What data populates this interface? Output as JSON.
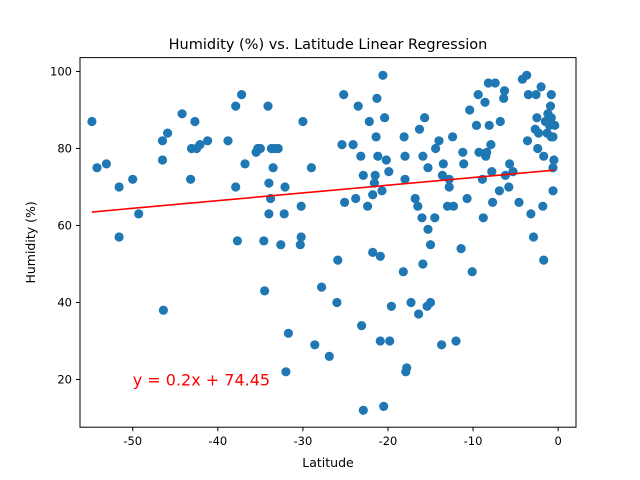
{
  "chart_data": {
    "type": "scatter",
    "title": "Humidity (%) vs. Latitude Linear Regression",
    "xlabel": "Latitude",
    "ylabel": "Humidity (%)",
    "xlim": [
      -56.2,
      2.1
    ],
    "ylim": [
      7.6,
      103.6
    ],
    "xticks": [
      -50,
      -40,
      -30,
      -20,
      -10,
      0
    ],
    "yticks": [
      20,
      40,
      60,
      80,
      100
    ],
    "grid": false,
    "point_color": "#1f77b4",
    "line_color": "#ff0000",
    "regression": {
      "slope": 0.2,
      "intercept": 74.45,
      "x_range": [
        -54.8,
        -0.5
      ],
      "equation": "y = 0.2x + 74.45",
      "label_position": [
        -50,
        20
      ]
    },
    "points": [
      [
        -54.8,
        87
      ],
      [
        -54.2,
        75
      ],
      [
        -53.1,
        76
      ],
      [
        -51.6,
        70
      ],
      [
        -51.6,
        57
      ],
      [
        -50,
        72
      ],
      [
        -49.3,
        63
      ],
      [
        -46.5,
        82
      ],
      [
        -46.5,
        77
      ],
      [
        -46.4,
        38
      ],
      [
        -45.9,
        84
      ],
      [
        -44.2,
        89
      ],
      [
        -43.2,
        72
      ],
      [
        -43.1,
        80
      ],
      [
        -42.7,
        87
      ],
      [
        -42.5,
        80
      ],
      [
        -42.1,
        81
      ],
      [
        -41.2,
        82
      ],
      [
        -38.8,
        82
      ],
      [
        -37.9,
        91
      ],
      [
        -37.9,
        70
      ],
      [
        -37.7,
        56
      ],
      [
        -37.2,
        94
      ],
      [
        -36.8,
        76
      ],
      [
        -35.5,
        79
      ],
      [
        -35.3,
        80
      ],
      [
        -35,
        80
      ],
      [
        -34.6,
        56
      ],
      [
        -34.5,
        43
      ],
      [
        -34.1,
        91
      ],
      [
        -34,
        63
      ],
      [
        -34,
        71
      ],
      [
        -33.8,
        67
      ],
      [
        -33.7,
        80
      ],
      [
        -33.5,
        75
      ],
      [
        -33.3,
        80
      ],
      [
        -32.9,
        80
      ],
      [
        -32.6,
        55
      ],
      [
        -32.2,
        63
      ],
      [
        -32.1,
        70
      ],
      [
        -32,
        22
      ],
      [
        -31.7,
        32
      ],
      [
        -30.3,
        55
      ],
      [
        -30.2,
        57
      ],
      [
        -30.2,
        65
      ],
      [
        -30,
        87
      ],
      [
        -29,
        75
      ],
      [
        -28.6,
        29
      ],
      [
        -27.8,
        44
      ],
      [
        -26.9,
        26
      ],
      [
        -26,
        40
      ],
      [
        -25.9,
        51
      ],
      [
        -25.4,
        81
      ],
      [
        -25.2,
        94
      ],
      [
        -25.1,
        66
      ],
      [
        -24.1,
        81
      ],
      [
        -23.8,
        67
      ],
      [
        -23.5,
        91
      ],
      [
        -23.2,
        78
      ],
      [
        -23.1,
        34
      ],
      [
        -22.9,
        12
      ],
      [
        -22.9,
        73
      ],
      [
        -22.4,
        65
      ],
      [
        -22.2,
        87
      ],
      [
        -21.8,
        53
      ],
      [
        -21.8,
        68
      ],
      [
        -21.6,
        71
      ],
      [
        -21.5,
        73
      ],
      [
        -21.4,
        83
      ],
      [
        -21.3,
        93
      ],
      [
        -21.2,
        78
      ],
      [
        -20.9,
        30
      ],
      [
        -20.9,
        52
      ],
      [
        -20.7,
        69
      ],
      [
        -20.6,
        99
      ],
      [
        -20.5,
        13
      ],
      [
        -20.4,
        88
      ],
      [
        -20.2,
        77
      ],
      [
        -19.9,
        74
      ],
      [
        -19.8,
        30
      ],
      [
        -19.6,
        39
      ],
      [
        -18.2,
        48
      ],
      [
        -18.1,
        83
      ],
      [
        -18,
        78
      ],
      [
        -18,
        72
      ],
      [
        -17.9,
        22
      ],
      [
        -17.8,
        23
      ],
      [
        -17.3,
        40
      ],
      [
        -16.8,
        67
      ],
      [
        -16.5,
        65
      ],
      [
        -16.4,
        37
      ],
      [
        -16.3,
        85
      ],
      [
        -16,
        62
      ],
      [
        -15.9,
        50
      ],
      [
        -15.9,
        78
      ],
      [
        -15.7,
        88
      ],
      [
        -15.4,
        39
      ],
      [
        -15.3,
        59
      ],
      [
        -15.3,
        75
      ],
      [
        -15,
        40
      ],
      [
        -15,
        55
      ],
      [
        -14.5,
        62
      ],
      [
        -14.4,
        80
      ],
      [
        -14,
        82
      ],
      [
        -13.7,
        29
      ],
      [
        -13.6,
        73
      ],
      [
        -13.5,
        76
      ],
      [
        -13,
        65
      ],
      [
        -12.8,
        72
      ],
      [
        -12.8,
        70
      ],
      [
        -12.4,
        83
      ],
      [
        -12.3,
        65
      ],
      [
        -12,
        30
      ],
      [
        -11.4,
        54
      ],
      [
        -11.2,
        79
      ],
      [
        -11.1,
        76
      ],
      [
        -10.7,
        67
      ],
      [
        -10.4,
        90
      ],
      [
        -10.1,
        48
      ],
      [
        -9.6,
        86
      ],
      [
        -9.4,
        94
      ],
      [
        -9.3,
        79
      ],
      [
        -8.9,
        72
      ],
      [
        -8.8,
        62
      ],
      [
        -8.6,
        92
      ],
      [
        -8.5,
        78
      ],
      [
        -8.4,
        79
      ],
      [
        -8.2,
        97
      ],
      [
        -8.1,
        86
      ],
      [
        -7.9,
        81
      ],
      [
        -7.8,
        74
      ],
      [
        -7.7,
        66
      ],
      [
        -7.4,
        97
      ],
      [
        -6.9,
        69
      ],
      [
        -6.8,
        87
      ],
      [
        -6.4,
        93
      ],
      [
        -6.3,
        95
      ],
      [
        -6.2,
        73
      ],
      [
        -5.8,
        70
      ],
      [
        -5.7,
        76
      ],
      [
        -5.3,
        74
      ],
      [
        -4.6,
        66
      ],
      [
        -4.2,
        98
      ],
      [
        -3.7,
        99
      ],
      [
        -3.6,
        82
      ],
      [
        -3.5,
        94
      ],
      [
        -3.2,
        63
      ],
      [
        -2.9,
        57
      ],
      [
        -2.7,
        85
      ],
      [
        -2.6,
        94
      ],
      [
        -2.5,
        88
      ],
      [
        -2.4,
        80
      ],
      [
        -2.3,
        84
      ],
      [
        -2,
        96
      ],
      [
        -1.8,
        65
      ],
      [
        -1.7,
        51
      ],
      [
        -1.7,
        78
      ],
      [
        -1.5,
        87
      ],
      [
        -1.3,
        84
      ],
      [
        -1.2,
        89
      ],
      [
        -1,
        86
      ],
      [
        -0.9,
        91
      ],
      [
        -0.8,
        94
      ],
      [
        -0.8,
        83
      ],
      [
        -0.8,
        88
      ],
      [
        -0.6,
        75
      ],
      [
        -0.6,
        69
      ],
      [
        -0.6,
        83
      ],
      [
        -0.5,
        77
      ],
      [
        -0.4,
        86
      ]
    ]
  }
}
